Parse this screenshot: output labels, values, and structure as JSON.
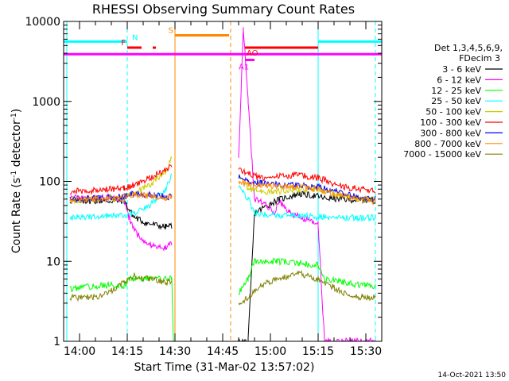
{
  "chart_data": {
    "type": "line",
    "title": "RHESSI Observing Summary Count Rates",
    "xlabel": "Start Time (31-Mar-02 13:57:02)",
    "ylabel": "Count Rate (s",
    "ylabel_sup": "-1",
    "ylabel_mid": " detector",
    "ylabel_end": ")",
    "timestamp": "14-Oct-2021 13:50",
    "x_range_min": [
      -2,
      38
    ],
    "y_range": [
      1,
      10000
    ],
    "y_scale": "log",
    "x_ticks": [
      {
        "min": 3,
        "label": "14:00"
      },
      {
        "min": 18,
        "label": "14:15"
      },
      {
        "min": 33,
        "label": "14:30"
      },
      {
        "min": 48,
        "label": "14:45"
      },
      {
        "min": 63,
        "label": "15:00"
      },
      {
        "min": 78,
        "label": "15:15"
      },
      {
        "min": 93,
        "label": "15:30"
      }
    ],
    "x_axis_min": [
      -2,
      98
    ],
    "y_ticks": [
      {
        "v": 1,
        "label": "1"
      },
      {
        "v": 10,
        "label": "10"
      },
      {
        "v": 100,
        "label": "100"
      },
      {
        "v": 1000,
        "label": "1000"
      },
      {
        "v": 10000,
        "label": "10000"
      }
    ],
    "legend": {
      "header1": "Det 1,3,4,5,6,9,",
      "header2": "FDecim 3",
      "placement": "right"
    },
    "series": [
      {
        "name": "3 - 6 keV",
        "color": "#000000",
        "points": [
          [
            0,
            57
          ],
          [
            10,
            57
          ],
          [
            17,
            57
          ],
          [
            18.5,
            45
          ],
          [
            20,
            36
          ],
          [
            24,
            30
          ],
          [
            30,
            27
          ],
          [
            32,
            28
          ],
          [
            33,
            null
          ],
          [
            52,
            null
          ],
          [
            53,
            1
          ],
          [
            56,
            1
          ],
          [
            58,
            40
          ],
          [
            62,
            50
          ],
          [
            65,
            58
          ],
          [
            72,
            70
          ],
          [
            78,
            65
          ],
          [
            80,
            62
          ],
          [
            86,
            60
          ],
          [
            92,
            58
          ],
          [
            96,
            58
          ]
        ]
      },
      {
        "name": "6 - 12 keV",
        "color": "#ff00ff",
        "points": [
          [
            0,
            62
          ],
          [
            10,
            62
          ],
          [
            17,
            60
          ],
          [
            18.5,
            35
          ],
          [
            21,
            22
          ],
          [
            25,
            16
          ],
          [
            30,
            15
          ],
          [
            32,
            17
          ],
          [
            33,
            null
          ],
          [
            52,
            null
          ],
          [
            53,
            200
          ],
          [
            54.5,
            8000
          ],
          [
            56,
            1000
          ],
          [
            58,
            60
          ],
          [
            62,
            50
          ],
          [
            64,
            40
          ],
          [
            66,
            55
          ],
          [
            69,
            40
          ],
          [
            73,
            35
          ],
          [
            78,
            30
          ],
          [
            80,
            1
          ],
          [
            96,
            1
          ]
        ]
      },
      {
        "name": "12 - 25 keV",
        "color": "#00ff00",
        "points": [
          [
            0,
            4.5
          ],
          [
            10,
            5
          ],
          [
            17,
            5
          ],
          [
            18.5,
            6
          ],
          [
            25,
            6
          ],
          [
            32,
            6
          ],
          [
            32.5,
            1
          ],
          [
            33,
            null
          ],
          [
            52,
            null
          ],
          [
            53,
            4
          ],
          [
            56,
            6
          ],
          [
            58,
            10
          ],
          [
            65,
            10
          ],
          [
            72,
            9.5
          ],
          [
            78,
            9
          ],
          [
            80,
            6
          ],
          [
            86,
            5.5
          ],
          [
            92,
            5
          ],
          [
            96,
            5
          ]
        ]
      },
      {
        "name": "25 - 50 keV",
        "color": "#00ffff",
        "points": [
          [
            0,
            35
          ],
          [
            10,
            37
          ],
          [
            17,
            38
          ],
          [
            20,
            40
          ],
          [
            25,
            50
          ],
          [
            30,
            80
          ],
          [
            32,
            120
          ],
          [
            33,
            null
          ],
          [
            52,
            null
          ],
          [
            53,
            90
          ],
          [
            56,
            60
          ],
          [
            58,
            40
          ],
          [
            65,
            38
          ],
          [
            72,
            37
          ],
          [
            78,
            36
          ],
          [
            86,
            35
          ],
          [
            92,
            35
          ],
          [
            96,
            35
          ]
        ]
      },
      {
        "name": "50 - 100 keV",
        "color": "#cccc00",
        "points": [
          [
            0,
            58
          ],
          [
            10,
            60
          ],
          [
            17,
            62
          ],
          [
            20,
            72
          ],
          [
            25,
            90
          ],
          [
            30,
            130
          ],
          [
            32,
            200
          ],
          [
            33,
            null
          ],
          [
            52,
            null
          ],
          [
            53,
            120
          ],
          [
            56,
            80
          ],
          [
            60,
            75
          ],
          [
            65,
            75
          ],
          [
            72,
            78
          ],
          [
            78,
            80
          ],
          [
            86,
            65
          ],
          [
            92,
            60
          ],
          [
            96,
            60
          ]
        ]
      },
      {
        "name": "100 - 300 keV",
        "color": "#ff0000",
        "points": [
          [
            0,
            75
          ],
          [
            10,
            78
          ],
          [
            17,
            82
          ],
          [
            20,
            90
          ],
          [
            25,
            110
          ],
          [
            30,
            140
          ],
          [
            32,
            160
          ],
          [
            33,
            null
          ],
          [
            52,
            null
          ],
          [
            53,
            140
          ],
          [
            56,
            125
          ],
          [
            60,
            110
          ],
          [
            65,
            115
          ],
          [
            72,
            120
          ],
          [
            78,
            110
          ],
          [
            86,
            85
          ],
          [
            92,
            80
          ],
          [
            96,
            78
          ]
        ]
      },
      {
        "name": "300 - 800 keV",
        "color": "#0000ff",
        "points": [
          [
            0,
            60
          ],
          [
            10,
            62
          ],
          [
            17,
            65
          ],
          [
            20,
            70
          ],
          [
            25,
            68
          ],
          [
            30,
            65
          ],
          [
            32,
            64
          ],
          [
            33,
            null
          ],
          [
            52,
            null
          ],
          [
            53,
            110
          ],
          [
            56,
            100
          ],
          [
            60,
            95
          ],
          [
            65,
            92
          ],
          [
            72,
            90
          ],
          [
            78,
            85
          ],
          [
            86,
            70
          ],
          [
            92,
            62
          ],
          [
            96,
            60
          ]
        ]
      },
      {
        "name": "800 - 7000 keV",
        "color": "#ff8800",
        "points": [
          [
            0,
            58
          ],
          [
            10,
            60
          ],
          [
            17,
            65
          ],
          [
            20,
            68
          ],
          [
            25,
            66
          ],
          [
            30,
            63
          ],
          [
            32,
            62
          ],
          [
            33,
            null
          ],
          [
            52,
            null
          ],
          [
            53,
            95
          ],
          [
            56,
            92
          ],
          [
            60,
            90
          ],
          [
            65,
            88
          ],
          [
            72,
            85
          ],
          [
            78,
            80
          ],
          [
            86,
            65
          ],
          [
            92,
            58
          ],
          [
            96,
            56
          ]
        ]
      },
      {
        "name": "7000 - 15000 keV",
        "color": "#808000",
        "points": [
          [
            0,
            3.5
          ],
          [
            10,
            3.6
          ],
          [
            17,
            5.5
          ],
          [
            20,
            6.5
          ],
          [
            25,
            6
          ],
          [
            30,
            5.5
          ],
          [
            32,
            5.5
          ],
          [
            33,
            null
          ],
          [
            52,
            null
          ],
          [
            53,
            3
          ],
          [
            56,
            3.5
          ],
          [
            60,
            5
          ],
          [
            65,
            6
          ],
          [
            72,
            7
          ],
          [
            78,
            6
          ],
          [
            86,
            4
          ],
          [
            92,
            3.5
          ],
          [
            96,
            3.5
          ]
        ]
      }
    ],
    "flags": [
      {
        "label": "N",
        "color": "#00ffff",
        "level": 5600,
        "segments": [
          [
            -2,
            18
          ],
          [
            78,
            98
          ]
        ]
      },
      {
        "label": "F",
        "color": "#ff0000",
        "level": 4700,
        "segments": [
          [
            18,
            22.5
          ],
          [
            26,
            27
          ]
        ]
      },
      {
        "label": "S",
        "color": "#ff8800",
        "level": 6700,
        "segments": [
          [
            33,
            50
          ]
        ]
      },
      {
        "label": "",
        "color": "#ff00ff",
        "level": 3900,
        "segments": [
          [
            -2,
            98
          ]
        ]
      },
      {
        "label": "AO",
        "color": "#ff0000",
        "level": 4700,
        "segments": [
          [
            55,
            78
          ]
        ]
      },
      {
        "label": "A1",
        "color": "#ff00ff",
        "level": 3300,
        "segments": [
          [
            55,
            58
          ]
        ]
      }
    ],
    "vlines": [
      {
        "min": -1,
        "color": "#00ffff",
        "style": "solid"
      },
      {
        "min": 18,
        "color": "#00ffff",
        "style": "dashed"
      },
      {
        "min": 78,
        "color": "#00ffff",
        "style": "solid"
      },
      {
        "min": 96,
        "color": "#00ffff",
        "style": "dashed"
      },
      {
        "min": 33,
        "color": "#ff8800",
        "style": "solid"
      },
      {
        "min": 50.5,
        "color": "#ff8800",
        "style": "dashed"
      }
    ]
  }
}
